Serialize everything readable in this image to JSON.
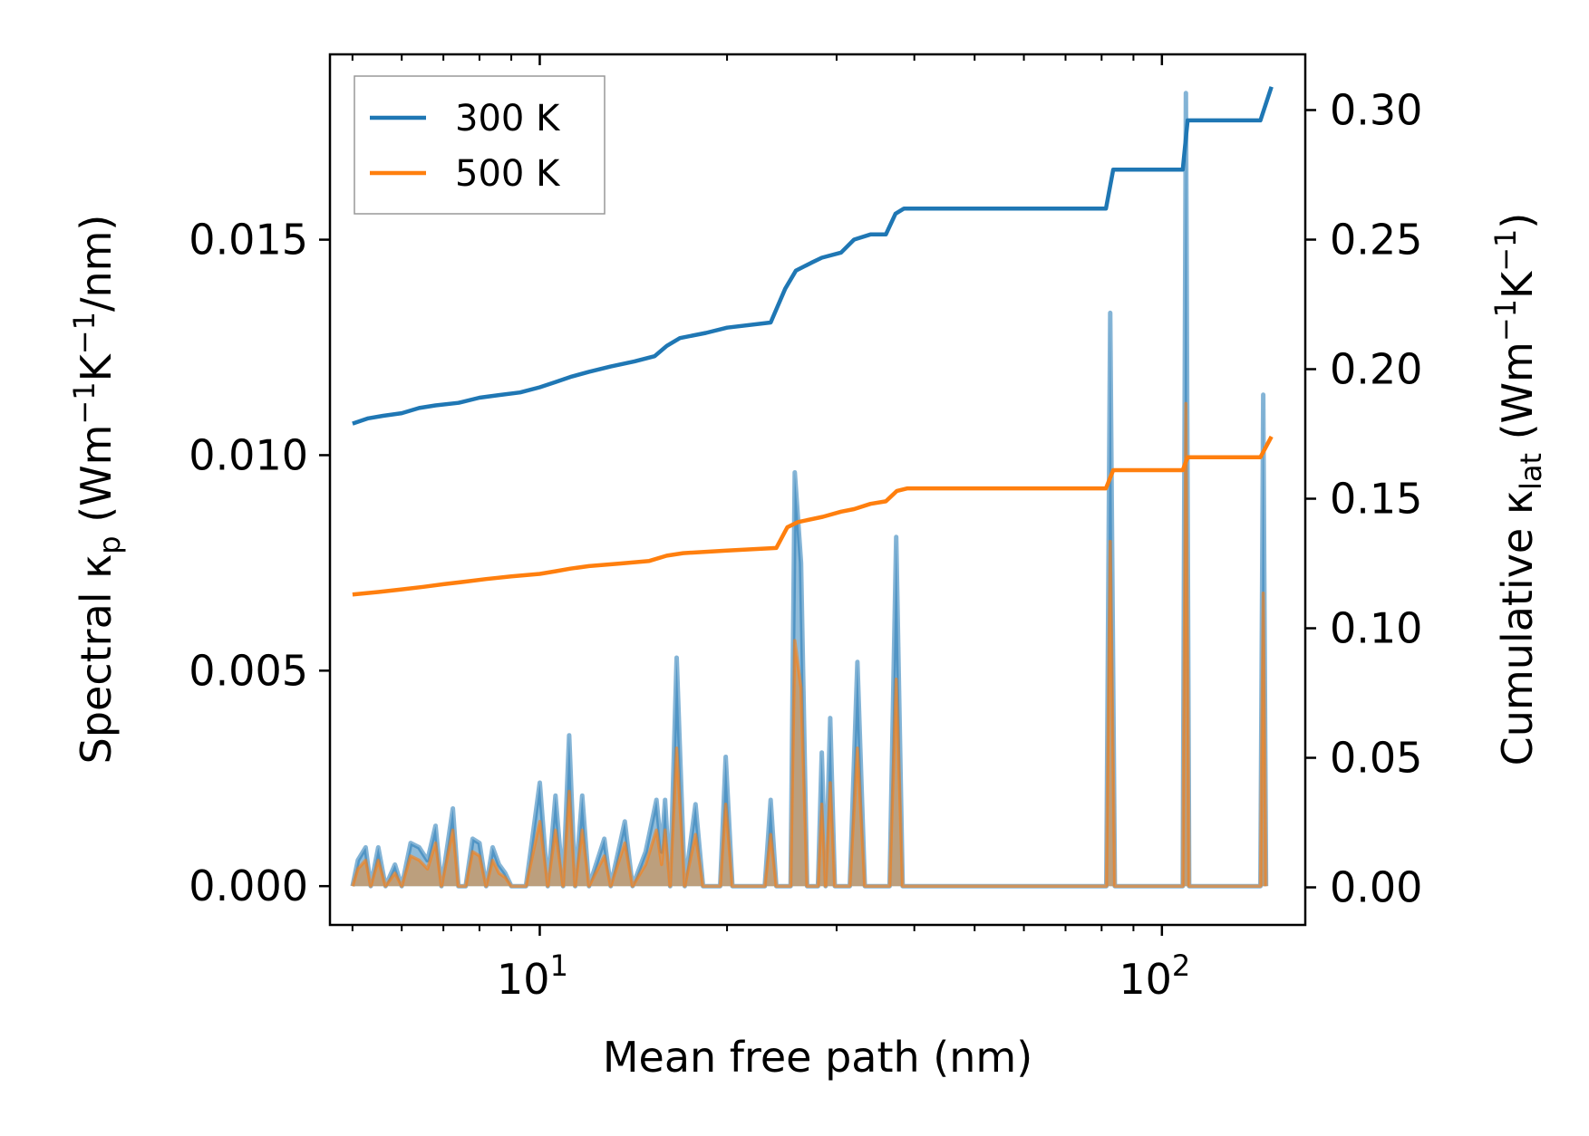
{
  "chart_data": {
    "type": "line",
    "title": "",
    "xlabel": "Mean free path (nm)",
    "xscale": "log",
    "xlim": [
      4.6,
      170
    ],
    "xticks_major": [
      {
        "value": 10,
        "base": "10",
        "exp": "1"
      },
      {
        "value": 100,
        "base": "10",
        "exp": "2"
      }
    ],
    "ylabel_left": {
      "prefix": "Spectral κ",
      "sub": "p",
      "mid": " (Wm",
      "sup1": "−1",
      "mid2": "K",
      "sup2": "−1",
      "suffix": "/nm)"
    },
    "ylim_left": [
      -0.0009,
      0.0193
    ],
    "yticks_left": [
      "0.000",
      "0.005",
      "0.010",
      "0.015"
    ],
    "yticks_left_values": [
      0,
      0.005,
      0.01,
      0.015
    ],
    "ylabel_right": {
      "prefix": "Cumulative κ",
      "sub": "lat",
      "mid": " (Wm",
      "sup1": "−1",
      "mid2": "K",
      "sup2": "−1",
      "suffix": ")"
    },
    "ylim_right": [
      -0.0145,
      0.3215
    ],
    "yticks_right": [
      "0.00",
      "0.05",
      "0.10",
      "0.15",
      "0.20",
      "0.25",
      "0.30"
    ],
    "yticks_right_values": [
      0,
      0.05,
      0.1,
      0.15,
      0.2,
      0.25,
      0.3
    ],
    "legend": {
      "position": "upper-left",
      "entries": [
        "300 K",
        "500 K"
      ]
    },
    "colors": {
      "300 K": "#1f77b4",
      "500 K": "#ff7f0e",
      "spectral_500_fill": "#c49a6c"
    },
    "series": [
      {
        "name": "300 K",
        "axis": "right",
        "kind": "cumulative",
        "points": [
          [
            5.0,
            0.179
          ],
          [
            5.3,
            0.181
          ],
          [
            5.6,
            0.182
          ],
          [
            6.0,
            0.183
          ],
          [
            6.4,
            0.185
          ],
          [
            6.8,
            0.186
          ],
          [
            7.4,
            0.187
          ],
          [
            8.0,
            0.189
          ],
          [
            8.6,
            0.19
          ],
          [
            9.3,
            0.191
          ],
          [
            10.0,
            0.193
          ],
          [
            10.6,
            0.195
          ],
          [
            11.2,
            0.197
          ],
          [
            12.0,
            0.199
          ],
          [
            13.0,
            0.201
          ],
          [
            14.2,
            0.203
          ],
          [
            15.3,
            0.205
          ],
          [
            16.0,
            0.209
          ],
          [
            16.8,
            0.212
          ],
          [
            18.5,
            0.214
          ],
          [
            20.0,
            0.216
          ],
          [
            23.5,
            0.218
          ],
          [
            24.8,
            0.231
          ],
          [
            25.8,
            0.238
          ],
          [
            27.3,
            0.241
          ],
          [
            28.4,
            0.243
          ],
          [
            30.5,
            0.245
          ],
          [
            32.0,
            0.25
          ],
          [
            34.0,
            0.252
          ],
          [
            36.0,
            0.252
          ],
          [
            37.3,
            0.26
          ],
          [
            38.5,
            0.262
          ],
          [
            50.0,
            0.262
          ],
          [
            70.0,
            0.262
          ],
          [
            81.3,
            0.262
          ],
          [
            83.5,
            0.277
          ],
          [
            100.0,
            0.277
          ],
          [
            108.0,
            0.277
          ],
          [
            110.0,
            0.296
          ],
          [
            140.0,
            0.296
          ],
          [
            144.0,
            0.296
          ],
          [
            150.0,
            0.309
          ]
        ]
      },
      {
        "name": "500 K",
        "axis": "right",
        "kind": "cumulative",
        "points": [
          [
            5.0,
            0.113
          ],
          [
            5.5,
            0.114
          ],
          [
            6.0,
            0.115
          ],
          [
            6.5,
            0.116
          ],
          [
            7.0,
            0.117
          ],
          [
            7.6,
            0.118
          ],
          [
            8.2,
            0.119
          ],
          [
            9.0,
            0.12
          ],
          [
            10.0,
            0.121
          ],
          [
            10.6,
            0.122
          ],
          [
            11.2,
            0.123
          ],
          [
            12.0,
            0.124
          ],
          [
            13.5,
            0.125
          ],
          [
            15.0,
            0.126
          ],
          [
            16.0,
            0.128
          ],
          [
            17.0,
            0.129
          ],
          [
            20.0,
            0.13
          ],
          [
            24.0,
            0.131
          ],
          [
            25.0,
            0.139
          ],
          [
            26.0,
            0.141
          ],
          [
            28.5,
            0.143
          ],
          [
            30.5,
            0.145
          ],
          [
            32.0,
            0.146
          ],
          [
            34.0,
            0.148
          ],
          [
            36.0,
            0.149
          ],
          [
            37.5,
            0.153
          ],
          [
            39.0,
            0.154
          ],
          [
            60.0,
            0.154
          ],
          [
            81.3,
            0.154
          ],
          [
            83.5,
            0.161
          ],
          [
            100.0,
            0.161
          ],
          [
            108.0,
            0.161
          ],
          [
            110.0,
            0.166
          ],
          [
            140.0,
            0.166
          ],
          [
            144.0,
            0.166
          ],
          [
            150.0,
            0.174
          ]
        ]
      },
      {
        "name": "300 K spectral",
        "axis": "left",
        "kind": "spectral",
        "points": [
          [
            5.0,
            0
          ],
          [
            5.1,
            0.0006
          ],
          [
            5.25,
            0.0009
          ],
          [
            5.35,
            0
          ],
          [
            5.5,
            0.0009
          ],
          [
            5.65,
            0
          ],
          [
            5.85,
            0.0005
          ],
          [
            6.0,
            0
          ],
          [
            6.2,
            0.001
          ],
          [
            6.4,
            0.0009
          ],
          [
            6.6,
            0.0006
          ],
          [
            6.8,
            0.0014
          ],
          [
            6.95,
            0
          ],
          [
            7.25,
            0.0018
          ],
          [
            7.4,
            0
          ],
          [
            7.6,
            0
          ],
          [
            7.8,
            0.0011
          ],
          [
            8.0,
            0.001
          ],
          [
            8.2,
            0
          ],
          [
            8.4,
            0.0009
          ],
          [
            8.6,
            0.0005
          ],
          [
            8.8,
            0.0003
          ],
          [
            9.0,
            0
          ],
          [
            9.5,
            0
          ],
          [
            10.0,
            0.0024
          ],
          [
            10.3,
            0
          ],
          [
            10.6,
            0.0021
          ],
          [
            10.9,
            0
          ],
          [
            11.15,
            0.0035
          ],
          [
            11.4,
            0
          ],
          [
            11.7,
            0.0021
          ],
          [
            12.0,
            0
          ],
          [
            12.7,
            0.0011
          ],
          [
            13.0,
            0
          ],
          [
            13.7,
            0.0015
          ],
          [
            14.1,
            0
          ],
          [
            14.8,
            0.0008
          ],
          [
            15.4,
            0.002
          ],
          [
            15.7,
            0.0008
          ],
          [
            15.9,
            0.002
          ],
          [
            16.2,
            0
          ],
          [
            16.6,
            0.0053
          ],
          [
            17.1,
            0
          ],
          [
            17.8,
            0.0019
          ],
          [
            18.3,
            0
          ],
          [
            19.5,
            0
          ],
          [
            19.9,
            0.003
          ],
          [
            20.4,
            0
          ],
          [
            23.0,
            0
          ],
          [
            23.5,
            0.002
          ],
          [
            24.0,
            0
          ],
          [
            25.3,
            0
          ],
          [
            25.7,
            0.0096
          ],
          [
            26.3,
            0.0075
          ],
          [
            26.9,
            0
          ],
          [
            28.0,
            0
          ],
          [
            28.4,
            0.0031
          ],
          [
            28.8,
            0
          ],
          [
            29.3,
            0.0039
          ],
          [
            29.8,
            0
          ],
          [
            31.5,
            0
          ],
          [
            32.4,
            0.0052
          ],
          [
            33.3,
            0
          ],
          [
            36.5,
            0
          ],
          [
            37.4,
            0.0081
          ],
          [
            38.3,
            0
          ],
          [
            80.0,
            0
          ],
          [
            81.4,
            0
          ],
          [
            82.6,
            0.0133
          ],
          [
            84.0,
            0
          ],
          [
            106.0,
            0
          ],
          [
            108.0,
            0
          ],
          [
            109.3,
            0.0184
          ],
          [
            110.6,
            0
          ],
          [
            112.0,
            0
          ],
          [
            142.0,
            0
          ],
          [
            144.0,
            0
          ],
          [
            145.5,
            0.0114
          ],
          [
            147.0,
            0
          ]
        ]
      },
      {
        "name": "500 K spectral",
        "axis": "left",
        "kind": "spectral",
        "points": [
          [
            5.0,
            0
          ],
          [
            5.1,
            0.0004
          ],
          [
            5.25,
            0.0006
          ],
          [
            5.35,
            0
          ],
          [
            5.5,
            0.0006
          ],
          [
            5.65,
            0
          ],
          [
            5.85,
            0.0003
          ],
          [
            6.0,
            0
          ],
          [
            6.2,
            0.0007
          ],
          [
            6.4,
            0.0006
          ],
          [
            6.6,
            0.0004
          ],
          [
            6.8,
            0.001
          ],
          [
            6.95,
            0
          ],
          [
            7.25,
            0.0013
          ],
          [
            7.4,
            0
          ],
          [
            7.6,
            0
          ],
          [
            7.8,
            0.0008
          ],
          [
            8.0,
            0.0007
          ],
          [
            8.2,
            0
          ],
          [
            8.4,
            0.0006
          ],
          [
            8.6,
            0.0003
          ],
          [
            8.8,
            0.0002
          ],
          [
            9.0,
            0
          ],
          [
            9.5,
            0
          ],
          [
            10.0,
            0.0015
          ],
          [
            10.3,
            0
          ],
          [
            10.6,
            0.0013
          ],
          [
            10.9,
            0
          ],
          [
            11.15,
            0.0022
          ],
          [
            11.4,
            0
          ],
          [
            11.7,
            0.0013
          ],
          [
            12.0,
            0
          ],
          [
            12.7,
            0.0007
          ],
          [
            13.0,
            0
          ],
          [
            13.7,
            0.001
          ],
          [
            14.1,
            0
          ],
          [
            14.8,
            0.0005
          ],
          [
            15.4,
            0.0013
          ],
          [
            15.7,
            0.0005
          ],
          [
            15.9,
            0.0013
          ],
          [
            16.2,
            0
          ],
          [
            16.6,
            0.0032
          ],
          [
            17.1,
            0
          ],
          [
            17.8,
            0.0012
          ],
          [
            18.3,
            0
          ],
          [
            19.5,
            0
          ],
          [
            19.9,
            0.0019
          ],
          [
            20.4,
            0
          ],
          [
            23.0,
            0
          ],
          [
            23.5,
            0.0012
          ],
          [
            24.0,
            0
          ],
          [
            25.3,
            0
          ],
          [
            25.7,
            0.0057
          ],
          [
            26.3,
            0.0046
          ],
          [
            26.9,
            0
          ],
          [
            28.0,
            0
          ],
          [
            28.4,
            0.0019
          ],
          [
            28.8,
            0
          ],
          [
            29.3,
            0.0024
          ],
          [
            29.8,
            0
          ],
          [
            31.5,
            0
          ],
          [
            32.4,
            0.0032
          ],
          [
            33.3,
            0
          ],
          [
            36.5,
            0
          ],
          [
            37.4,
            0.0048
          ],
          [
            38.3,
            0
          ],
          [
            80.0,
            0
          ],
          [
            81.4,
            0
          ],
          [
            82.6,
            0.008
          ],
          [
            84.0,
            0
          ],
          [
            106.0,
            0
          ],
          [
            108.0,
            0
          ],
          [
            109.3,
            0.0112
          ],
          [
            110.6,
            0
          ],
          [
            112.0,
            0
          ],
          [
            142.0,
            0
          ],
          [
            144.0,
            0
          ],
          [
            145.5,
            0.0068
          ],
          [
            147.0,
            0
          ]
        ]
      }
    ]
  }
}
